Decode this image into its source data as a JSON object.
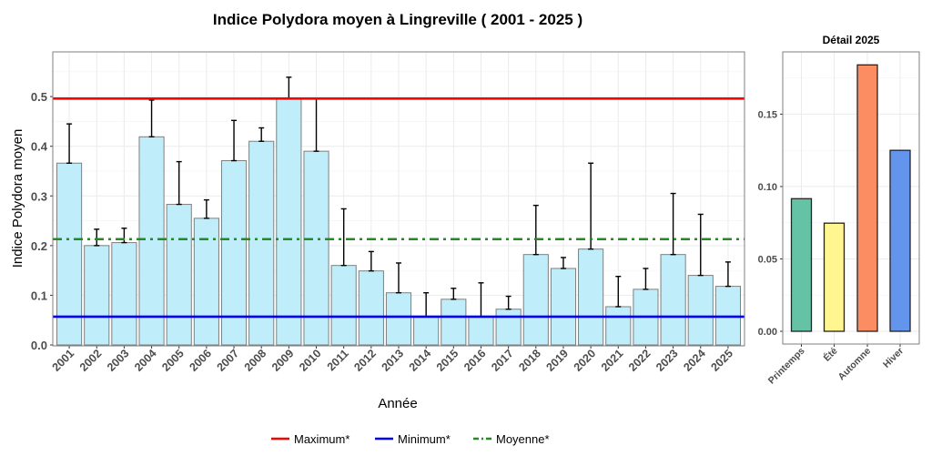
{
  "chart_data": [
    {
      "type": "bar",
      "title": "Indice Polydora moyen à Lingreville ( 2001 - 2025 )",
      "xlabel": "Année",
      "ylabel": "Indice Polydora moyen",
      "ylim": [
        0,
        0.59
      ],
      "yticks": [
        "0.0",
        "0.1",
        "0.2",
        "0.3",
        "0.4",
        "0.5"
      ],
      "ytick_values": [
        0,
        0.1,
        0.2,
        0.3,
        0.4,
        0.5
      ],
      "categories": [
        "2001",
        "2002",
        "2003",
        "2004",
        "2005",
        "2006",
        "2007",
        "2008",
        "2009",
        "2010",
        "2011",
        "2012",
        "2013",
        "2014",
        "2015",
        "2016",
        "2017",
        "2018",
        "2019",
        "2020",
        "2021",
        "2022",
        "2023",
        "2024",
        "2025"
      ],
      "values": [
        0.366,
        0.2,
        0.206,
        0.419,
        0.283,
        0.255,
        0.371,
        0.41,
        0.496,
        0.39,
        0.16,
        0.149,
        0.105,
        0.057,
        0.092,
        0.057,
        0.072,
        0.182,
        0.154,
        0.193,
        0.077,
        0.112,
        0.182,
        0.14,
        0.118
      ],
      "error_upper": [
        0.445,
        0.233,
        0.235,
        0.493,
        0.369,
        0.292,
        0.452,
        0.437,
        0.539,
        0.496,
        0.274,
        0.188,
        0.165,
        0.105,
        0.114,
        0.125,
        0.098,
        0.281,
        0.176,
        0.366,
        0.138,
        0.154,
        0.305,
        0.263,
        0.167
      ],
      "bar_color": "#bfeefa",
      "reference_lines": [
        {
          "name": "Maximum*",
          "value": 0.496,
          "color": "#ff0000",
          "style": "solid"
        },
        {
          "name": "Minimum*",
          "value": 0.057,
          "color": "#0000ff",
          "style": "solid"
        },
        {
          "name": "Moyenne*",
          "value": 0.213,
          "color": "#228b22",
          "style": "dotdash"
        }
      ],
      "legend_position": "bottom",
      "grid": true
    },
    {
      "type": "bar",
      "title": "Détail 2025",
      "ylim": [
        -0.009,
        0.193
      ],
      "yticks": [
        "0.00",
        "0.05",
        "0.10",
        "0.15"
      ],
      "ytick_values": [
        0,
        0.05,
        0.1,
        0.15
      ],
      "categories": [
        "Printemps",
        "Été",
        "Automne",
        "Hiver"
      ],
      "values": [
        0.0916,
        0.0747,
        0.184,
        0.125
      ],
      "colors": [
        "#66c2a5",
        "#fff68f",
        "#fc8d62",
        "#6495ed"
      ],
      "grid": true
    }
  ]
}
